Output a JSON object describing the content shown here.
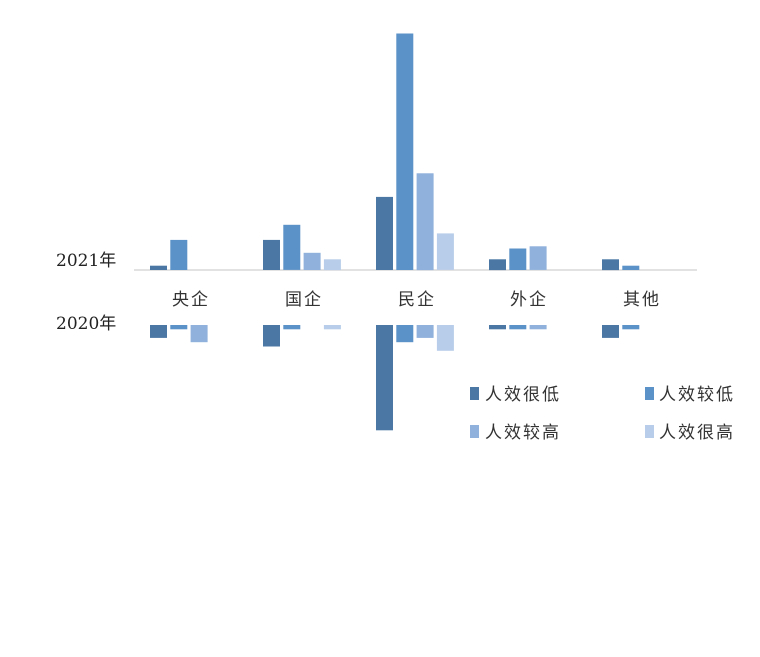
{
  "chart_data": {
    "type": "bar",
    "categories": [
      "央企",
      "国企",
      "民企",
      "外企",
      "其他"
    ],
    "panels": [
      {
        "label": "2021年",
        "series": [
          {
            "name": "人效很低",
            "color": "#4a77a4",
            "values": [
              1,
              7,
              17,
              2.5,
              2.5
            ]
          },
          {
            "name": "人效较低",
            "color": "#5b92c7",
            "values": [
              7,
              10.5,
              55,
              5,
              1
            ]
          },
          {
            "name": "人效较高",
            "color": "#8fb1dc",
            "values": [
              0,
              4,
              22.5,
              5.5,
              0
            ]
          },
          {
            "name": "人效很高",
            "color": "#b8cde9",
            "values": [
              0,
              2.5,
              8.5,
              0,
              0
            ]
          }
        ]
      },
      {
        "label": "2020年",
        "series": [
          {
            "name": "人效很低",
            "color": "#4a77a4",
            "values": [
              3,
              5,
              24.5,
              1,
              3
            ]
          },
          {
            "name": "人效较低",
            "color": "#5b92c7",
            "values": [
              1,
              1,
              4,
              1,
              1
            ]
          },
          {
            "name": "人效较高",
            "color": "#8fb1dc",
            "values": [
              4,
              0,
              3,
              1,
              0
            ]
          },
          {
            "name": "人效很高",
            "color": "#b8cde9",
            "values": [
              0,
              1,
              6,
              0,
              0
            ]
          }
        ]
      }
    ],
    "legend": [
      "人效很低",
      "人效较低",
      "人效较高",
      "人效很高"
    ],
    "legend_position": "bottom-right"
  }
}
